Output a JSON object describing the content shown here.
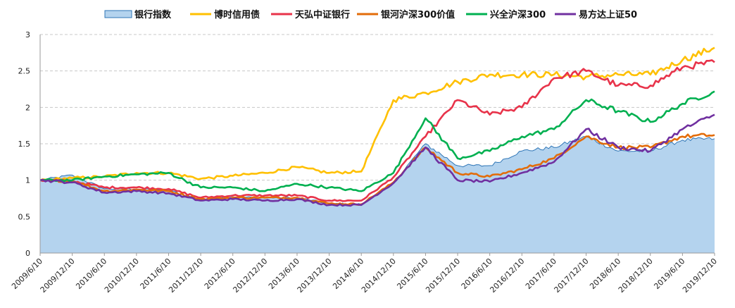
{
  "chart_data": {
    "type": "line",
    "title": "",
    "xlabel": "",
    "ylabel": "",
    "ylim": [
      0,
      3
    ],
    "yticks": [
      "0",
      "0.5",
      "1",
      "1.5",
      "2",
      "2.5",
      "3"
    ],
    "grid": "horizontal dashed",
    "legend_position": "top",
    "x": [
      "2009/6/10",
      "2009/12/10",
      "2010/6/10",
      "2010/12/10",
      "2011/6/10",
      "2011/12/10",
      "2012/6/10",
      "2012/12/10",
      "2013/6/10",
      "2013/12/10",
      "2014/6/10",
      "2014/12/10",
      "2015/6/10",
      "2015/12/10",
      "2016/6/10",
      "2016/12/10",
      "2017/6/10",
      "2017/12/10",
      "2018/6/10",
      "2018/12/10",
      "2019/6/10",
      "2019/12/10"
    ],
    "series": [
      {
        "name": "银行指数",
        "style": "area",
        "color": "#b4d3ee",
        "stroke": "#2e75b6",
        "values": [
          1.0,
          1.07,
          0.88,
          0.88,
          0.86,
          0.74,
          0.77,
          0.76,
          0.76,
          0.68,
          0.67,
          0.97,
          1.5,
          1.2,
          1.2,
          1.4,
          1.45,
          1.6,
          1.4,
          1.4,
          1.55,
          1.57
        ]
      },
      {
        "name": "博时信用债",
        "style": "line",
        "color": "#ffc000",
        "values": [
          1.0,
          1.03,
          1.05,
          1.1,
          1.1,
          1.02,
          1.06,
          1.1,
          1.18,
          1.1,
          1.12,
          2.1,
          2.2,
          2.35,
          2.45,
          2.45,
          2.45,
          2.42,
          2.45,
          2.45,
          2.65,
          2.82
        ]
      },
      {
        "name": "天弘中证银行",
        "style": "line",
        "color": "#e8334a",
        "values": [
          1.0,
          0.99,
          0.9,
          0.9,
          0.88,
          0.76,
          0.79,
          0.79,
          0.79,
          0.72,
          0.72,
          1.04,
          1.6,
          2.1,
          1.9,
          2.0,
          2.4,
          2.5,
          2.3,
          2.3,
          2.55,
          2.62
        ]
      },
      {
        "name": "银河沪深300价值",
        "style": "line",
        "color": "#e36c09",
        "values": [
          1.0,
          0.99,
          0.85,
          0.87,
          0.85,
          0.74,
          0.76,
          0.76,
          0.76,
          0.68,
          0.67,
          0.97,
          1.45,
          1.1,
          1.05,
          1.15,
          1.3,
          1.6,
          1.45,
          1.45,
          1.6,
          1.62
        ]
      },
      {
        "name": "兴全沪深300",
        "style": "line",
        "color": "#00b050",
        "values": [
          1.0,
          1.0,
          1.05,
          1.08,
          1.1,
          0.9,
          0.9,
          0.85,
          0.95,
          0.9,
          0.85,
          1.1,
          1.85,
          1.3,
          1.4,
          1.6,
          1.7,
          2.1,
          1.95,
          1.8,
          2.05,
          2.22
        ]
      },
      {
        "name": "易方达上证50",
        "style": "line",
        "color": "#7030a0",
        "values": [
          1.0,
          0.97,
          0.83,
          0.85,
          0.82,
          0.72,
          0.74,
          0.72,
          0.74,
          0.66,
          0.66,
          0.96,
          1.45,
          1.0,
          0.98,
          1.1,
          1.25,
          1.7,
          1.45,
          1.4,
          1.7,
          1.9
        ]
      }
    ]
  }
}
